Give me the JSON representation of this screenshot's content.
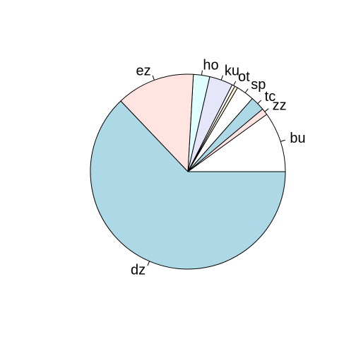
{
  "chart_data": {
    "type": "pie",
    "title": "",
    "slices": [
      {
        "label": "bu",
        "value": 10.0,
        "color": "#FFFFFF"
      },
      {
        "label": "zz",
        "value": 1.1,
        "color": "#FFE4E1"
      },
      {
        "label": "tc",
        "value": 2.4,
        "color": "#ADD8E6"
      },
      {
        "label": "sp",
        "value": 3.0,
        "color": "#FFFFFF"
      },
      {
        "label": "",
        "value": 0.5,
        "color": "#FFF8DC"
      },
      {
        "label": "ot",
        "value": 0.5,
        "color": "#FFFFFF"
      },
      {
        "label": "ku",
        "value": 3.9,
        "color": "#E6E6FA"
      },
      {
        "label": "ho",
        "value": 2.7,
        "color": "#E0FFFF"
      },
      {
        "label": "ez",
        "value": 13.0,
        "color": "#FFE4E1"
      },
      {
        "label": "dz",
        "value": 62.9,
        "color": "#ADD8E6"
      }
    ],
    "direction": "counterclockwise",
    "start": "3 o'clock",
    "legend": "none"
  }
}
